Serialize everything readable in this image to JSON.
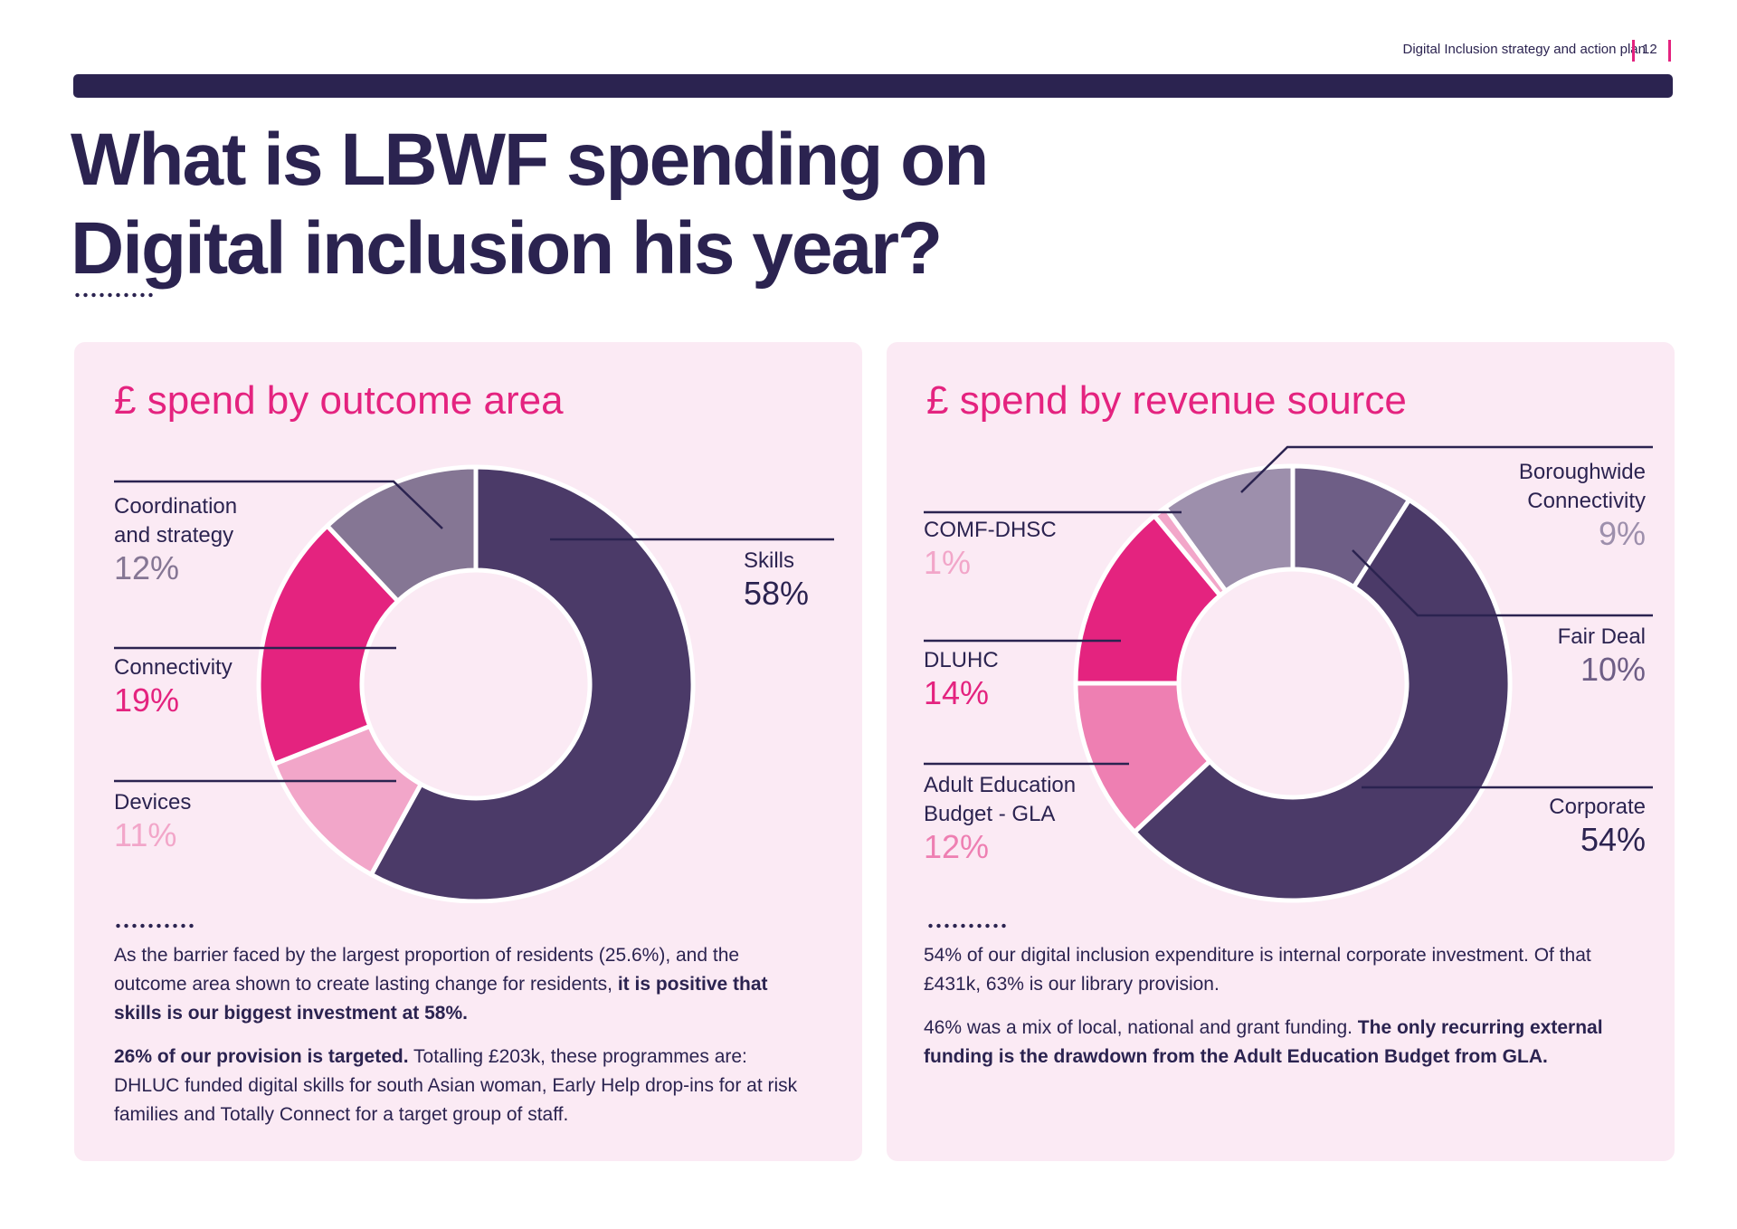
{
  "header": {
    "doc_title": "Digital Inclusion strategy and action plan",
    "page_number": "12"
  },
  "page_title_line1": "What is LBWF spending on",
  "page_title_line2": "Digital inclusion his year?",
  "colors": {
    "navy": "#2b2350",
    "magenta": "#e4237f",
    "panel_bg": "#fbeaf4"
  },
  "left_panel": {
    "heading": "£ spend by outcome area",
    "labels": {
      "coordination_name_1": "Coordination",
      "coordination_name_2": "and strategy",
      "coordination_pct": "12%",
      "connectivity_name": "Connectivity",
      "connectivity_pct": "19%",
      "devices_name": "Devices",
      "devices_pct": "11%",
      "skills_name": "Skills",
      "skills_pct": "58%"
    },
    "para1_plain": "As the barrier faced by the largest proportion of residents (25.6%), and the outcome area shown to create lasting change for residents, ",
    "para1_bold": "it is positive that skills is our biggest investment at 58%.",
    "para2_bold": "26% of our provision is targeted.",
    "para2_plain": " Totalling £203k, these programmes are: DHLUC funded digital skills for south Asian woman, Early Help drop-ins for at risk families and Totally Connect for a target group of staff."
  },
  "right_panel": {
    "heading": "£ spend by revenue source",
    "labels": {
      "comf_name": "COMF-DHSC",
      "comf_pct": "1%",
      "dluhc_name": "DLUHC",
      "dluhc_pct": "14%",
      "aeb_name_1": "Adult Education",
      "aeb_name_2": "Budget - GLA",
      "aeb_pct": "12%",
      "borough_name_1": "Boroughwide",
      "borough_name_2": "Connectivity",
      "borough_pct": "9%",
      "fairdeal_name": "Fair Deal",
      "fairdeal_pct": "10%",
      "corporate_name": "Corporate",
      "corporate_pct": "54%"
    },
    "para1": "54% of our digital inclusion expenditure is internal corporate investment. Of that £431k, 63% is our library provision.",
    "para2_plain": "46% was a mix of local, national and grant funding. ",
    "para2_bold": "The only recurring external funding is the drawdown from the Adult Education Budget from GLA."
  },
  "chart_data": [
    {
      "type": "pie",
      "title": "£ spend by outcome area",
      "categories": [
        "Skills",
        "Devices",
        "Connectivity",
        "Coordination and strategy"
      ],
      "values": [
        58,
        11,
        19,
        12
      ],
      "unit": "%",
      "colors": [
        "#4b3a68",
        "#f2a6c9",
        "#e4237f",
        "#857694"
      ]
    },
    {
      "type": "pie",
      "title": "£ spend by revenue source",
      "categories": [
        "Boroughwide Connectivity",
        "Corporate",
        "Adult Education Budget - GLA",
        "DLUHC",
        "COMF-DHSC",
        "Fair Deal"
      ],
      "values": [
        9,
        54,
        12,
        14,
        1,
        10
      ],
      "unit": "%",
      "colors": [
        "#6e5e86",
        "#4b3a68",
        "#ee7fb2",
        "#e4237f",
        "#f2a6c9",
        "#9d8fac"
      ]
    }
  ]
}
